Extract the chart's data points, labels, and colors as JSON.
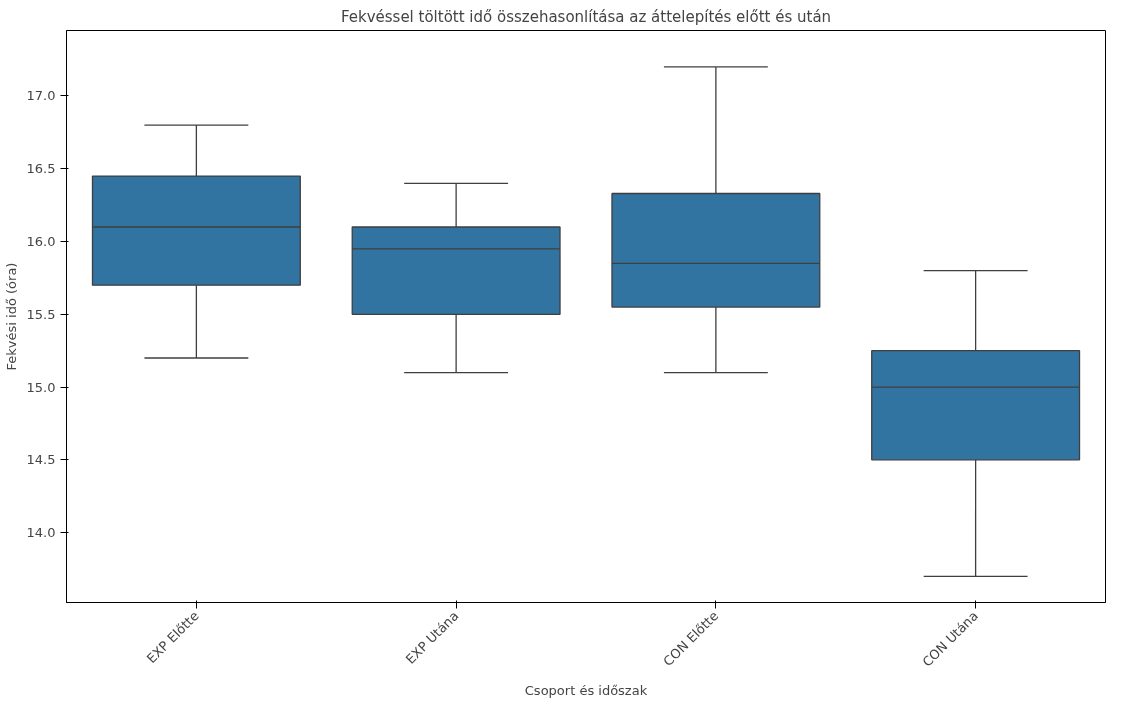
{
  "chart_data": {
    "type": "box",
    "title": "Fekvéssel töltött idő összehasonlítása az áttelepítés előtt és után",
    "xlabel": "Csoport és időszak",
    "ylabel": "Fekvési idő (óra)",
    "categories": [
      "EXP Előtte",
      "EXP Utána",
      "CON Előtte",
      "CON Utána"
    ],
    "series": [
      {
        "color": "#3274a1",
        "boxes": [
          {
            "low": 15.2,
            "q1": 15.7,
            "median": 16.1,
            "q3": 16.45,
            "high": 16.8
          },
          {
            "low": 15.1,
            "q1": 15.5,
            "median": 15.95,
            "q3": 16.1,
            "high": 16.4
          },
          {
            "low": 15.1,
            "q1": 15.55,
            "median": 15.85,
            "q3": 16.33,
            "high": 17.2
          },
          {
            "low": 13.7,
            "q1": 14.5,
            "median": 15.0,
            "q3": 15.25,
            "high": 15.8
          }
        ]
      }
    ],
    "ylim": [
      13.52,
      17.45
    ],
    "yticks": [
      {
        "value": 14,
        "label": "14.0"
      },
      14.5,
      {
        "value": 15,
        "label": "15.0"
      },
      15.5,
      {
        "value": 16,
        "label": "16.0"
      },
      16.5,
      {
        "value": 17,
        "label": "17.0"
      }
    ],
    "grid": false
  }
}
